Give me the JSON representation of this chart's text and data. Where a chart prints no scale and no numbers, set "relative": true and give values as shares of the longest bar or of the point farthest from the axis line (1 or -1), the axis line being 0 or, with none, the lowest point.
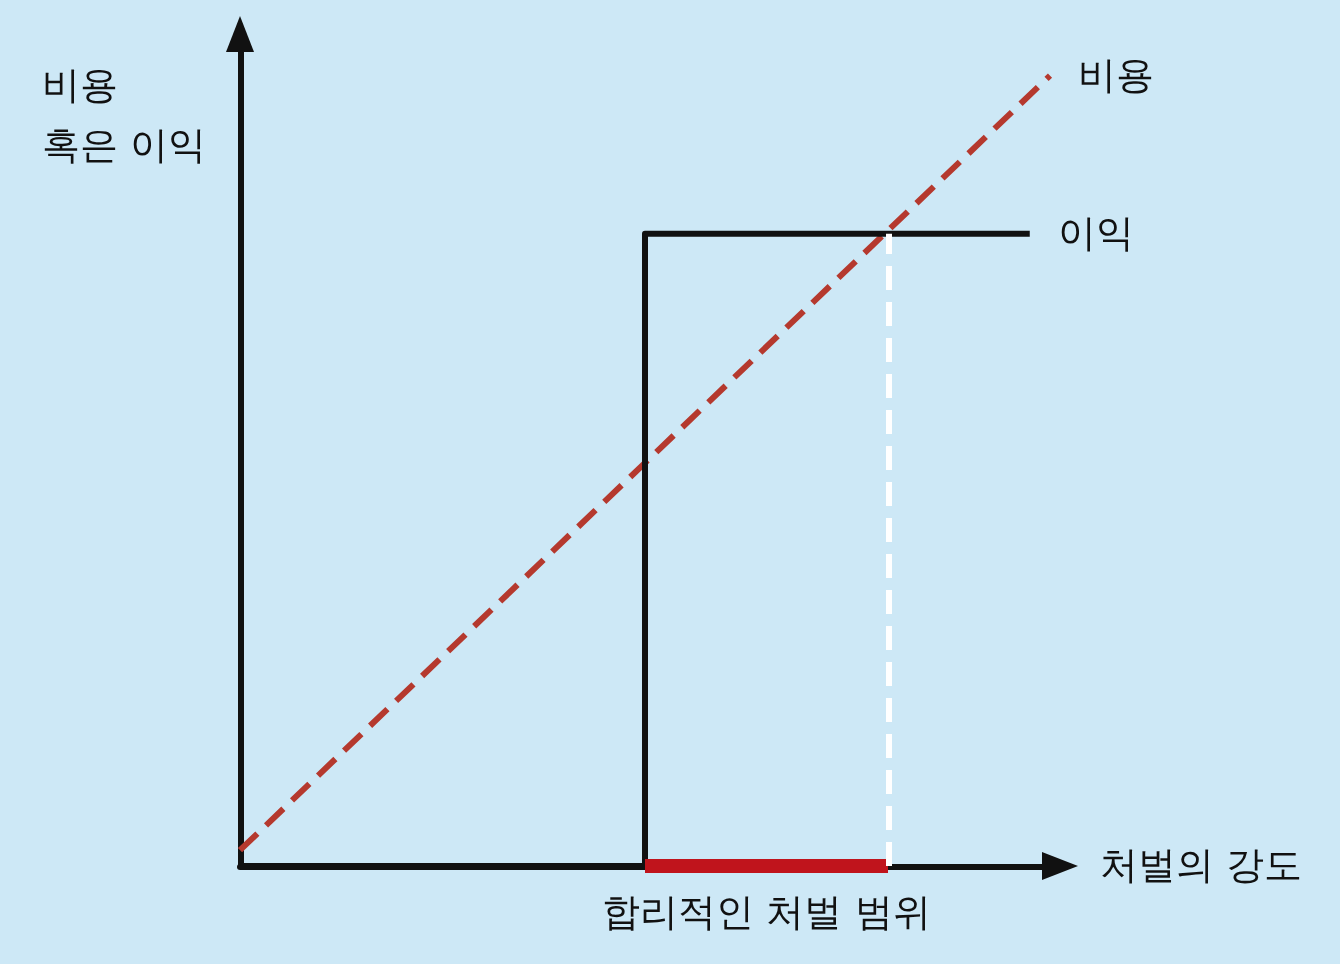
{
  "chart_data": {
    "type": "line",
    "relative": true,
    "xlabel": "처벌의 강도",
    "ylabel": "비용\n혹은 이익",
    "categories": [
      null,
      null,
      null,
      null,
      null,
      null,
      null,
      null,
      null,
      null,
      null,
      null,
      null,
      null,
      null,
      null,
      null,
      null,
      null,
      null,
      null,
      null,
      null,
      null,
      null,
      null,
      null,
      null,
      null,
      null,
      null,
      null,
      null,
      null,
      null,
      null,
      null,
      null,
      null,
      null,
      null
    ],
    "series": [
      {
        "name": "비용",
        "color": "#b5392e",
        "line_style": "dashed",
        "values": [
          0.02,
          null,
          null,
          null,
          null,
          null,
          null,
          null,
          null,
          null,
          null,
          null,
          null,
          null,
          null,
          null,
          null,
          null,
          null,
          null,
          null,
          null,
          null,
          null,
          null,
          null,
          null,
          null,
          null,
          null,
          null,
          null,
          null,
          null,
          null,
          null,
          null,
          null,
          null,
          null,
          1
        ]
      },
      {
        "name": "이익",
        "type": "step",
        "color": "#111111",
        "line_style": "solid",
        "values": [
          0,
          0,
          0,
          0,
          0,
          0,
          0,
          0,
          0,
          0,
          0,
          0,
          0,
          0,
          0,
          0,
          0,
          0,
          0,
          0,
          0.8,
          0.8,
          0.8,
          0.8,
          0.8,
          0.8,
          0.8,
          0.8,
          0.8,
          0.8,
          0.8,
          0.8,
          0.8,
          0.8,
          0.8,
          0.8,
          0.8,
          0.8,
          0.8,
          0.8,
          null
        ]
      },
      {
        "color": "#c0141c",
        "line_style": "solid",
        "values": [
          null,
          null,
          null,
          null,
          null,
          null,
          null,
          null,
          null,
          null,
          null,
          null,
          null,
          null,
          null,
          null,
          null,
          null,
          null,
          null,
          0,
          0,
          0,
          0,
          0,
          0,
          0,
          0,
          0,
          0,
          0,
          0,
          0,
          null,
          null,
          null,
          null,
          null,
          null,
          null,
          null
        ]
      }
    ],
    "annotations": [
      "합리적인 처벌 범위"
    ],
    "marker": "none",
    "grid": false,
    "legend": false
  }
}
